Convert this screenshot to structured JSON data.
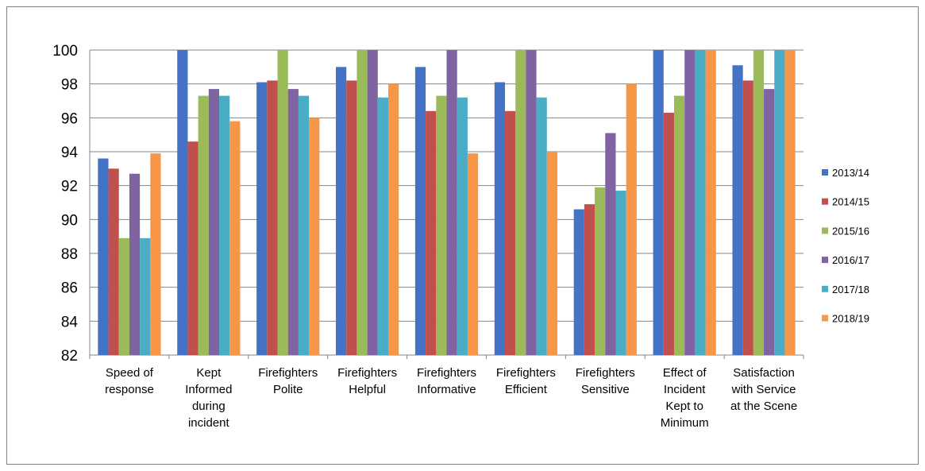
{
  "chart_data": {
    "type": "bar",
    "title": "",
    "xlabel": "",
    "ylabel": "",
    "ylim": [
      82,
      100
    ],
    "yticks": [
      82,
      84,
      86,
      88,
      90,
      92,
      94,
      96,
      98,
      100
    ],
    "grid": true,
    "legend_position": "right",
    "categories": [
      [
        "Speed of",
        "response"
      ],
      [
        "Kept",
        "Informed",
        "during",
        "incident"
      ],
      [
        "Firefighters",
        "Polite"
      ],
      [
        "Firefighters",
        "Helpful"
      ],
      [
        "Firefighters",
        "Informative"
      ],
      [
        "Firefighters",
        "Efficient"
      ],
      [
        "Firefighters",
        "Sensitive"
      ],
      [
        "Effect of",
        "Incident",
        "Kept to",
        "Minimum"
      ],
      [
        "Satisfaction",
        "with Service",
        "at the Scene"
      ]
    ],
    "series": [
      {
        "name": "2013/14",
        "color": "#4472C4",
        "values": [
          93.6,
          100,
          98.1,
          99,
          99,
          98.1,
          90.6,
          100,
          99.1
        ]
      },
      {
        "name": "2014/15",
        "color": "#C0504D",
        "values": [
          93,
          94.6,
          98.2,
          98.2,
          96.4,
          96.4,
          90.9,
          96.3,
          98.2
        ]
      },
      {
        "name": "2015/16",
        "color": "#9BBB59",
        "values": [
          88.9,
          97.3,
          100,
          100,
          97.3,
          100,
          91.9,
          97.3,
          100
        ]
      },
      {
        "name": "2016/17",
        "color": "#8064A2",
        "values": [
          92.7,
          97.7,
          97.7,
          100,
          100,
          100,
          95.1,
          100,
          97.7
        ]
      },
      {
        "name": "2017/18",
        "color": "#4BACC6",
        "values": [
          88.9,
          97.3,
          97.3,
          97.2,
          97.2,
          97.2,
          91.7,
          100,
          100
        ]
      },
      {
        "name": "2018/19",
        "color": "#F79646",
        "values": [
          93.9,
          95.8,
          96,
          98,
          93.9,
          94,
          98,
          100,
          100
        ]
      }
    ]
  }
}
